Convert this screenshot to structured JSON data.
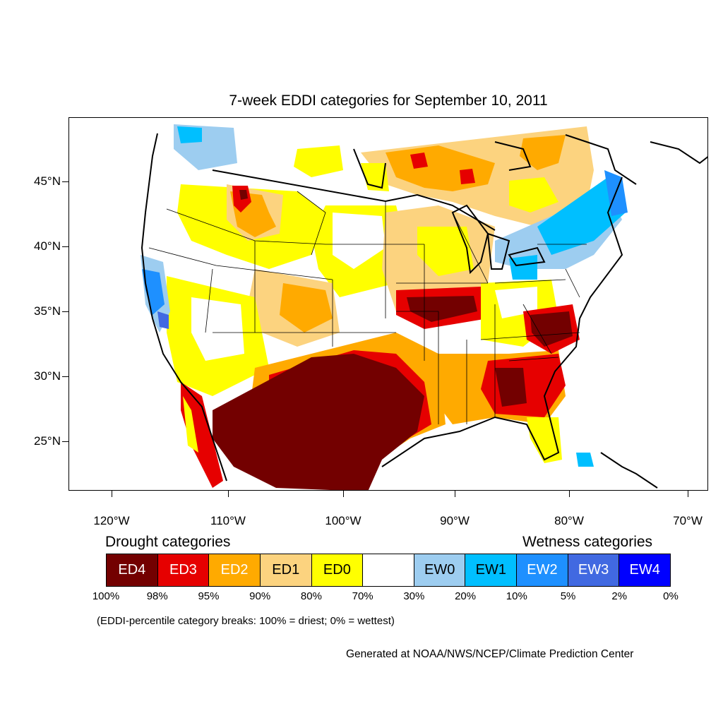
{
  "title": "7-week EDDI categories for September 10, 2011",
  "axes": {
    "lat_labels": [
      "45°N",
      "40°N",
      "35°N",
      "30°N",
      "25°N"
    ],
    "lon_labels": [
      "120°W",
      "110°W",
      "100°W",
      "90°W",
      "80°W",
      "70°W"
    ]
  },
  "legend": {
    "drought_heading": "Drought categories",
    "wetness_heading": "Wetness categories",
    "categories": [
      {
        "label": "ED4",
        "color": "#730000",
        "text_color": "#ffffff"
      },
      {
        "label": "ED3",
        "color": "#e60000",
        "text_color": "#ffffff"
      },
      {
        "label": "ED2",
        "color": "#ffaa00",
        "text_color": "#ffffff"
      },
      {
        "label": "ED1",
        "color": "#fcd37f",
        "text_color": "#000000"
      },
      {
        "label": "ED0",
        "color": "#ffff00",
        "text_color": "#000000"
      },
      {
        "label": "",
        "color": "#ffffff",
        "text_color": "#000000"
      },
      {
        "label": "EW0",
        "color": "#9dcdf0",
        "text_color": "#000000"
      },
      {
        "label": "EW1",
        "color": "#00bfff",
        "text_color": "#000000"
      },
      {
        "label": "EW2",
        "color": "#1e90ff",
        "text_color": "#ffffff"
      },
      {
        "label": "EW3",
        "color": "#4169e1",
        "text_color": "#ffffff"
      },
      {
        "label": "EW4",
        "color": "#0000ff",
        "text_color": "#ffffff"
      }
    ],
    "breaks": [
      "100%",
      "98%",
      "95%",
      "90%",
      "80%",
      "70%",
      "30%",
      "20%",
      "10%",
      "5%",
      "2%",
      "0%"
    ]
  },
  "footnote": "(EDDI-percentile category breaks: 100% = driest; 0% = wettest)",
  "credit": "Generated at NOAA/NWS/NCEP/Climate Prediction Center"
}
